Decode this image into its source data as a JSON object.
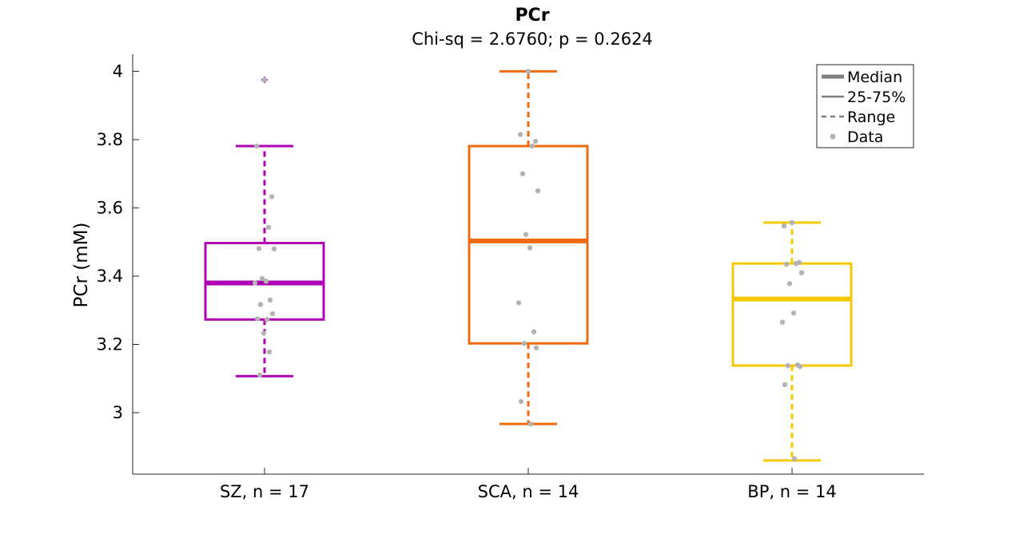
{
  "chart_data": {
    "type": "box",
    "title": "PCr",
    "subtitle": "Chi-sq = 2.6760; p = 0.2624",
    "xlabel": "",
    "ylabel": "PCr (mM)",
    "ylim": [
      2.82,
      4.05
    ],
    "yticks": [
      3,
      3.2,
      3.4,
      3.6,
      3.8,
      4
    ],
    "ytick_labels": [
      "3",
      "3.2",
      "3.4",
      "3.6",
      "3.8",
      "4"
    ],
    "grid": false,
    "legend_position": "top-right",
    "legend": [
      "Median",
      "25-75%",
      "Range",
      "Data"
    ],
    "groups": [
      {
        "label": "SZ, n = 17",
        "color": "#b000b5",
        "median": 3.38,
        "q1": 3.273,
        "q3": 3.497,
        "whisker_low": 3.107,
        "whisker_high": 3.781,
        "outliers": [
          3.975
        ],
        "points": [
          3.975,
          3.781,
          3.633,
          3.543,
          3.481,
          3.48,
          3.393,
          3.385,
          3.38,
          3.33,
          3.317,
          3.29,
          3.275,
          3.273,
          3.233,
          3.178,
          3.11
        ]
      },
      {
        "label": "SCA, n = 14",
        "color": "#f06b0f",
        "median": 3.503,
        "q1": 3.203,
        "q3": 3.781,
        "whisker_low": 2.967,
        "whisker_high": 4.0,
        "outliers": [],
        "points": [
          4.0,
          3.815,
          3.795,
          3.781,
          3.7,
          3.65,
          3.522,
          3.483,
          3.322,
          3.237,
          3.203,
          3.19,
          3.033,
          2.967
        ]
      },
      {
        "label": "BP, n = 14",
        "color": "#f5c800",
        "median": 3.333,
        "q1": 3.138,
        "q3": 3.437,
        "whisker_low": 2.86,
        "whisker_high": 3.557,
        "outliers": [],
        "points": [
          3.557,
          3.547,
          3.44,
          3.437,
          3.435,
          3.41,
          3.378,
          3.292,
          3.265,
          3.14,
          3.138,
          3.135,
          3.082,
          2.865
        ]
      }
    ]
  }
}
